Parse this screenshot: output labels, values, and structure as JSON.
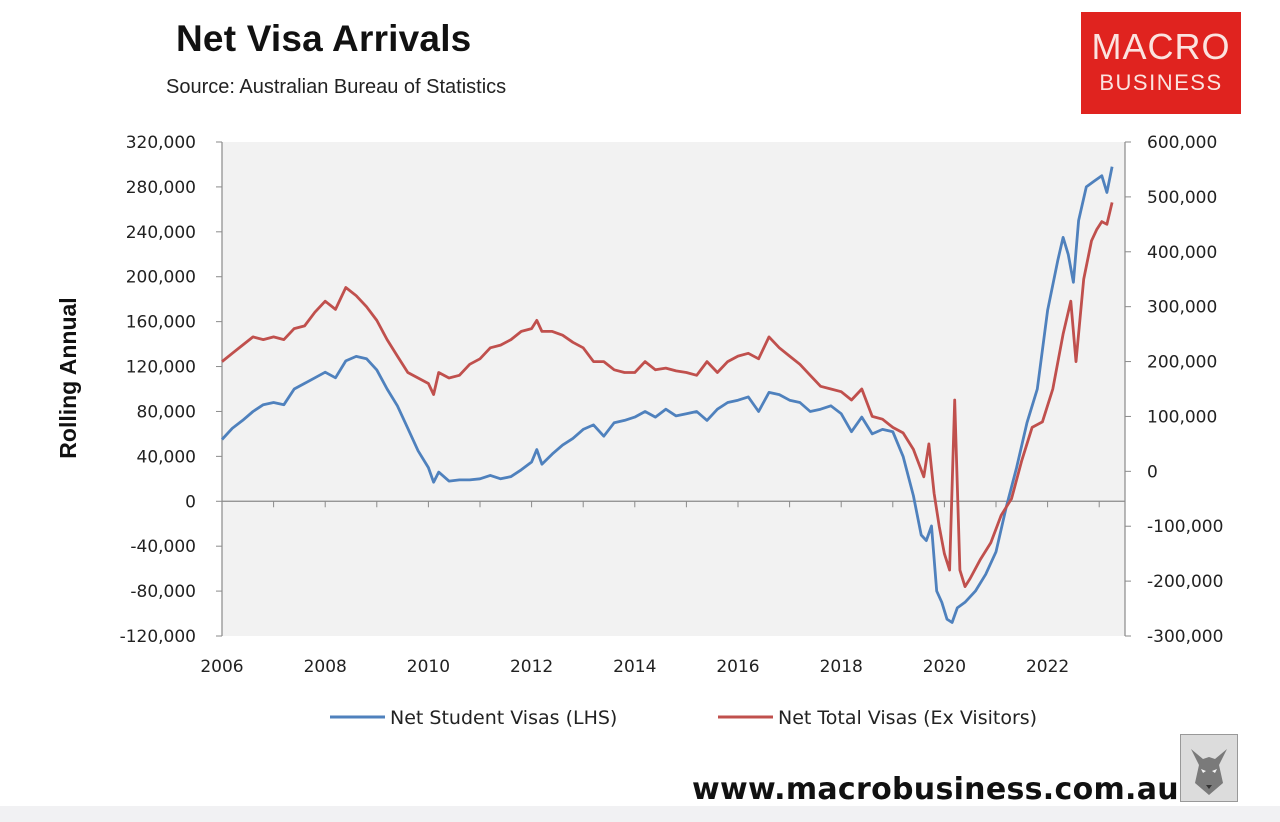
{
  "title": "Net Visa Arrivals",
  "subtitle": "Source: Australian Bureau of Statistics",
  "logo": {
    "line1": "MACRO",
    "line2": "BUSINESS"
  },
  "website": "www.macrobusiness.com.au",
  "colors": {
    "student": "#4f81bd",
    "total": "#c0504d",
    "logo": "#e0231f",
    "plot_bg": "#f2f2f2"
  },
  "chart_data": {
    "type": "line",
    "title": "Net Visa Arrivals",
    "ylabel": "Rolling Annual",
    "xlim": [
      2006,
      2023.5
    ],
    "ylim_left": [
      -120000,
      320000
    ],
    "ylim_right": [
      -300000,
      600000
    ],
    "x_ticks": [
      "2006",
      "2008",
      "2010",
      "2012",
      "2014",
      "2016",
      "2018",
      "2020",
      "2022"
    ],
    "y_ticks_left": [
      "320,000",
      "280,000",
      "240,000",
      "200,000",
      "160,000",
      "120,000",
      "80,000",
      "40,000",
      "0",
      "-40,000",
      "-80,000",
      "-120,000"
    ],
    "y_ticks_right": [
      "600,000",
      "500,000",
      "400,000",
      "300,000",
      "200,000",
      "100,000",
      "0",
      "-100,000",
      "-200,000",
      "-300,000"
    ],
    "legend_position": "bottom",
    "grid": false,
    "series": [
      {
        "name": "Net Student Visas (LHS)",
        "axis": "left",
        "points": [
          [
            2006.0,
            55000
          ],
          [
            2006.2,
            65000
          ],
          [
            2006.4,
            72000
          ],
          [
            2006.6,
            80000
          ],
          [
            2006.8,
            86000
          ],
          [
            2007.0,
            88000
          ],
          [
            2007.2,
            86000
          ],
          [
            2007.4,
            100000
          ],
          [
            2007.6,
            105000
          ],
          [
            2007.8,
            110000
          ],
          [
            2008.0,
            115000
          ],
          [
            2008.2,
            110000
          ],
          [
            2008.4,
            125000
          ],
          [
            2008.6,
            129000
          ],
          [
            2008.8,
            127000
          ],
          [
            2009.0,
            117000
          ],
          [
            2009.2,
            100000
          ],
          [
            2009.4,
            85000
          ],
          [
            2009.6,
            65000
          ],
          [
            2009.8,
            45000
          ],
          [
            2010.0,
            30000
          ],
          [
            2010.1,
            17000
          ],
          [
            2010.2,
            26000
          ],
          [
            2010.4,
            18000
          ],
          [
            2010.6,
            19000
          ],
          [
            2010.8,
            19000
          ],
          [
            2011.0,
            20000
          ],
          [
            2011.2,
            23000
          ],
          [
            2011.4,
            20000
          ],
          [
            2011.6,
            22000
          ],
          [
            2011.8,
            28000
          ],
          [
            2012.0,
            35000
          ],
          [
            2012.1,
            46000
          ],
          [
            2012.2,
            33000
          ],
          [
            2012.4,
            42000
          ],
          [
            2012.6,
            50000
          ],
          [
            2012.8,
            56000
          ],
          [
            2013.0,
            64000
          ],
          [
            2013.2,
            68000
          ],
          [
            2013.4,
            58000
          ],
          [
            2013.6,
            70000
          ],
          [
            2013.8,
            72000
          ],
          [
            2014.0,
            75000
          ],
          [
            2014.2,
            80000
          ],
          [
            2014.4,
            75000
          ],
          [
            2014.6,
            82000
          ],
          [
            2014.8,
            76000
          ],
          [
            2015.0,
            78000
          ],
          [
            2015.2,
            80000
          ],
          [
            2015.4,
            72000
          ],
          [
            2015.6,
            82000
          ],
          [
            2015.8,
            88000
          ],
          [
            2016.0,
            90000
          ],
          [
            2016.2,
            93000
          ],
          [
            2016.4,
            80000
          ],
          [
            2016.6,
            97000
          ],
          [
            2016.8,
            95000
          ],
          [
            2017.0,
            90000
          ],
          [
            2017.2,
            88000
          ],
          [
            2017.4,
            80000
          ],
          [
            2017.6,
            82000
          ],
          [
            2017.8,
            85000
          ],
          [
            2018.0,
            78000
          ],
          [
            2018.2,
            62000
          ],
          [
            2018.4,
            75000
          ],
          [
            2018.6,
            60000
          ],
          [
            2018.8,
            64000
          ],
          [
            2019.0,
            62000
          ],
          [
            2019.2,
            40000
          ],
          [
            2019.4,
            5000
          ],
          [
            2019.55,
            -30000
          ],
          [
            2019.65,
            -35000
          ],
          [
            2019.75,
            -22000
          ],
          [
            2019.85,
            -80000
          ],
          [
            2019.95,
            -90000
          ],
          [
            2020.05,
            -105000
          ],
          [
            2020.15,
            -108000
          ],
          [
            2020.25,
            -95000
          ],
          [
            2020.4,
            -90000
          ],
          [
            2020.6,
            -80000
          ],
          [
            2020.8,
            -65000
          ],
          [
            2021.0,
            -45000
          ],
          [
            2021.2,
            -5000
          ],
          [
            2021.4,
            30000
          ],
          [
            2021.6,
            70000
          ],
          [
            2021.8,
            100000
          ],
          [
            2022.0,
            170000
          ],
          [
            2022.2,
            215000
          ],
          [
            2022.3,
            235000
          ],
          [
            2022.4,
            220000
          ],
          [
            2022.5,
            195000
          ],
          [
            2022.6,
            250000
          ],
          [
            2022.75,
            280000
          ],
          [
            2022.9,
            285000
          ],
          [
            2023.05,
            290000
          ],
          [
            2023.15,
            275000
          ],
          [
            2023.25,
            298000
          ]
        ]
      },
      {
        "name": "Net Total Visas (Ex Visitors)",
        "axis": "right",
        "points": [
          [
            2006.0,
            200000
          ],
          [
            2006.2,
            215000
          ],
          [
            2006.4,
            230000
          ],
          [
            2006.6,
            245000
          ],
          [
            2006.8,
            240000
          ],
          [
            2007.0,
            245000
          ],
          [
            2007.2,
            240000
          ],
          [
            2007.4,
            260000
          ],
          [
            2007.6,
            265000
          ],
          [
            2007.8,
            290000
          ],
          [
            2008.0,
            310000
          ],
          [
            2008.2,
            295000
          ],
          [
            2008.4,
            335000
          ],
          [
            2008.6,
            320000
          ],
          [
            2008.8,
            300000
          ],
          [
            2009.0,
            275000
          ],
          [
            2009.2,
            240000
          ],
          [
            2009.4,
            210000
          ],
          [
            2009.6,
            180000
          ],
          [
            2009.8,
            170000
          ],
          [
            2010.0,
            160000
          ],
          [
            2010.1,
            140000
          ],
          [
            2010.2,
            180000
          ],
          [
            2010.4,
            170000
          ],
          [
            2010.6,
            175000
          ],
          [
            2010.8,
            195000
          ],
          [
            2011.0,
            205000
          ],
          [
            2011.2,
            225000
          ],
          [
            2011.4,
            230000
          ],
          [
            2011.6,
            240000
          ],
          [
            2011.8,
            255000
          ],
          [
            2012.0,
            260000
          ],
          [
            2012.1,
            275000
          ],
          [
            2012.2,
            255000
          ],
          [
            2012.4,
            255000
          ],
          [
            2012.6,
            248000
          ],
          [
            2012.8,
            235000
          ],
          [
            2013.0,
            225000
          ],
          [
            2013.2,
            200000
          ],
          [
            2013.4,
            200000
          ],
          [
            2013.6,
            185000
          ],
          [
            2013.8,
            180000
          ],
          [
            2014.0,
            180000
          ],
          [
            2014.2,
            200000
          ],
          [
            2014.4,
            185000
          ],
          [
            2014.6,
            188000
          ],
          [
            2014.8,
            183000
          ],
          [
            2015.0,
            180000
          ],
          [
            2015.2,
            175000
          ],
          [
            2015.4,
            200000
          ],
          [
            2015.6,
            180000
          ],
          [
            2015.8,
            200000
          ],
          [
            2016.0,
            210000
          ],
          [
            2016.2,
            215000
          ],
          [
            2016.4,
            205000
          ],
          [
            2016.6,
            245000
          ],
          [
            2016.8,
            225000
          ],
          [
            2017.0,
            210000
          ],
          [
            2017.2,
            195000
          ],
          [
            2017.4,
            175000
          ],
          [
            2017.6,
            155000
          ],
          [
            2017.8,
            150000
          ],
          [
            2018.0,
            145000
          ],
          [
            2018.2,
            130000
          ],
          [
            2018.4,
            150000
          ],
          [
            2018.6,
            100000
          ],
          [
            2018.8,
            95000
          ],
          [
            2019.0,
            80000
          ],
          [
            2019.2,
            70000
          ],
          [
            2019.4,
            40000
          ],
          [
            2019.6,
            -10000
          ],
          [
            2019.7,
            50000
          ],
          [
            2019.8,
            -40000
          ],
          [
            2019.9,
            -100000
          ],
          [
            2020.0,
            -150000
          ],
          [
            2020.1,
            -180000
          ],
          [
            2020.2,
            130000
          ],
          [
            2020.3,
            -180000
          ],
          [
            2020.4,
            -210000
          ],
          [
            2020.5,
            -195000
          ],
          [
            2020.7,
            -160000
          ],
          [
            2020.9,
            -130000
          ],
          [
            2021.1,
            -80000
          ],
          [
            2021.3,
            -50000
          ],
          [
            2021.5,
            20000
          ],
          [
            2021.7,
            80000
          ],
          [
            2021.9,
            90000
          ],
          [
            2022.1,
            150000
          ],
          [
            2022.3,
            250000
          ],
          [
            2022.45,
            310000
          ],
          [
            2022.55,
            200000
          ],
          [
            2022.7,
            350000
          ],
          [
            2022.85,
            420000
          ],
          [
            2022.95,
            440000
          ],
          [
            2023.05,
            455000
          ],
          [
            2023.15,
            450000
          ],
          [
            2023.25,
            490000
          ]
        ]
      }
    ]
  }
}
